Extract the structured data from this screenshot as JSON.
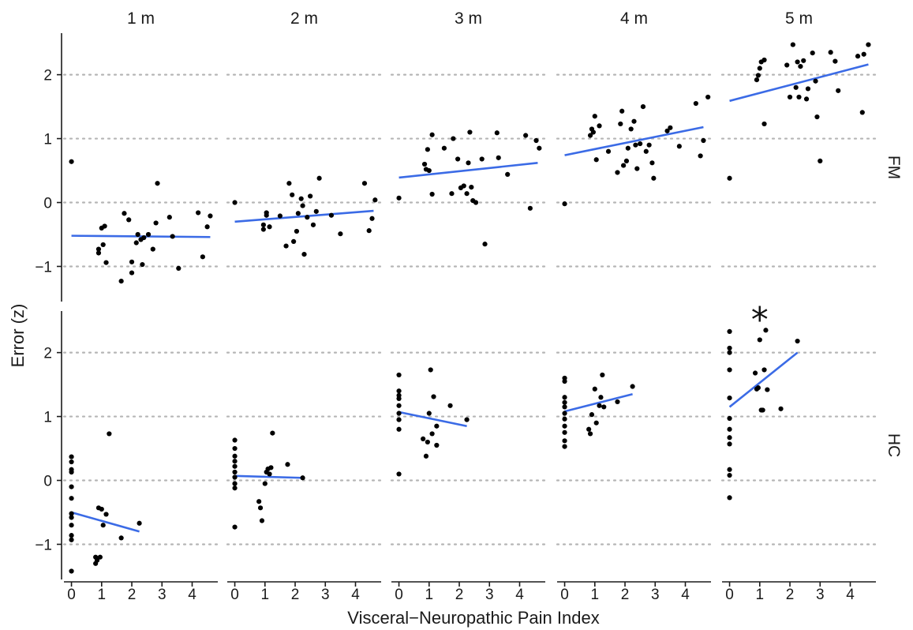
{
  "chart_data": {
    "type": "scatter",
    "xlabel": "Visceral−Neuropathic Pain Index",
    "ylabel": "Error (z)",
    "facet_columns": [
      "1 m",
      "2 m",
      "3 m",
      "4 m",
      "5 m"
    ],
    "facet_rows": [
      "FM",
      "HC"
    ],
    "x_ticks": [
      0,
      1,
      2,
      3,
      4
    ],
    "x_tick_labels": [
      "0",
      "1",
      "2",
      "3",
      "4"
    ],
    "xlim": [
      -0.25,
      4.85
    ],
    "y_ticks": [
      -1,
      0,
      1,
      2
    ],
    "y_tick_labels": [
      "−1",
      "0",
      "1",
      "2"
    ],
    "ylim": [
      -1.55,
      2.65
    ],
    "grid": "horizontal dotted at y ticks",
    "point_color": "#000000",
    "line_color": "#3b6be6",
    "panels": [
      {
        "row": "FM",
        "col": "1 m",
        "points": [
          [
            0,
            0.64
          ],
          [
            0.9,
            -0.73
          ],
          [
            0.9,
            -0.79
          ],
          [
            1.0,
            -0.4
          ],
          [
            1.05,
            -0.66
          ],
          [
            1.1,
            -0.37
          ],
          [
            1.15,
            -0.94
          ],
          [
            1.65,
            -1.23
          ],
          [
            1.75,
            -0.17
          ],
          [
            1.9,
            -0.27
          ],
          [
            2.0,
            -1.1
          ],
          [
            2.0,
            -0.93
          ],
          [
            2.15,
            -0.63
          ],
          [
            2.2,
            -0.5
          ],
          [
            2.3,
            -0.58
          ],
          [
            2.35,
            -0.97
          ],
          [
            2.4,
            -0.55
          ],
          [
            2.55,
            -0.5
          ],
          [
            2.7,
            -0.73
          ],
          [
            2.8,
            -0.32
          ],
          [
            2.85,
            0.3
          ],
          [
            3.25,
            -0.23
          ],
          [
            3.35,
            -0.53
          ],
          [
            3.55,
            -1.03
          ],
          [
            4.2,
            -0.16
          ],
          [
            4.35,
            -0.85
          ],
          [
            4.5,
            -0.38
          ],
          [
            4.6,
            -0.21
          ]
        ],
        "fit": [
          [
            0,
            -0.52
          ],
          [
            4.6,
            -0.54
          ]
        ]
      },
      {
        "row": "FM",
        "col": "2 m",
        "points": [
          [
            0,
            0.0
          ],
          [
            0.95,
            -0.35
          ],
          [
            0.95,
            -0.42
          ],
          [
            1.05,
            -0.2
          ],
          [
            1.05,
            -0.16
          ],
          [
            1.15,
            -0.38
          ],
          [
            1.5,
            -0.21
          ],
          [
            1.7,
            -0.68
          ],
          [
            1.8,
            0.3
          ],
          [
            1.9,
            0.12
          ],
          [
            1.95,
            -0.61
          ],
          [
            2.05,
            -0.45
          ],
          [
            2.1,
            -0.17
          ],
          [
            2.2,
            0.06
          ],
          [
            2.25,
            -0.05
          ],
          [
            2.3,
            -0.81
          ],
          [
            2.4,
            -0.23
          ],
          [
            2.5,
            0.1
          ],
          [
            2.6,
            -0.35
          ],
          [
            2.7,
            -0.14
          ],
          [
            2.8,
            0.38
          ],
          [
            3.2,
            -0.2
          ],
          [
            3.5,
            -0.49
          ],
          [
            4.3,
            0.3
          ],
          [
            4.45,
            -0.44
          ],
          [
            4.55,
            -0.25
          ],
          [
            4.65,
            0.04
          ]
        ],
        "fit": [
          [
            0,
            -0.3
          ],
          [
            4.6,
            -0.13
          ]
        ]
      },
      {
        "row": "FM",
        "col": "3 m",
        "points": [
          [
            0,
            0.07
          ],
          [
            0.85,
            0.6
          ],
          [
            0.9,
            0.52
          ],
          [
            0.95,
            0.83
          ],
          [
            1.0,
            0.5
          ],
          [
            1.1,
            0.13
          ],
          [
            1.1,
            1.06
          ],
          [
            1.5,
            0.85
          ],
          [
            1.75,
            0.14
          ],
          [
            1.8,
            1.0
          ],
          [
            1.95,
            0.68
          ],
          [
            2.05,
            0.23
          ],
          [
            2.15,
            0.26
          ],
          [
            2.25,
            0.14
          ],
          [
            2.3,
            0.62
          ],
          [
            2.35,
            1.1
          ],
          [
            2.4,
            0.24
          ],
          [
            2.45,
            0.03
          ],
          [
            2.55,
            0.0
          ],
          [
            2.75,
            0.68
          ],
          [
            2.85,
            -0.65
          ],
          [
            3.25,
            1.09
          ],
          [
            3.3,
            0.7
          ],
          [
            3.6,
            0.44
          ],
          [
            4.2,
            1.05
          ],
          [
            4.35,
            -0.09
          ],
          [
            4.55,
            0.97
          ],
          [
            4.65,
            0.85
          ]
        ],
        "fit": [
          [
            0,
            0.39
          ],
          [
            4.6,
            0.62
          ]
        ]
      },
      {
        "row": "FM",
        "col": "4 m",
        "points": [
          [
            0,
            -0.02
          ],
          [
            0.85,
            1.05
          ],
          [
            0.9,
            1.15
          ],
          [
            0.95,
            1.1
          ],
          [
            1.0,
            1.35
          ],
          [
            1.05,
            0.67
          ],
          [
            1.15,
            1.2
          ],
          [
            1.45,
            0.8
          ],
          [
            1.75,
            0.47
          ],
          [
            1.85,
            1.23
          ],
          [
            1.9,
            1.43
          ],
          [
            1.95,
            0.58
          ],
          [
            2.05,
            0.65
          ],
          [
            2.1,
            0.85
          ],
          [
            2.2,
            1.15
          ],
          [
            2.3,
            1.27
          ],
          [
            2.35,
            0.9
          ],
          [
            2.4,
            0.53
          ],
          [
            2.5,
            0.92
          ],
          [
            2.6,
            1.5
          ],
          [
            2.7,
            0.8
          ],
          [
            2.8,
            0.9
          ],
          [
            2.9,
            0.62
          ],
          [
            2.95,
            0.38
          ],
          [
            3.4,
            1.12
          ],
          [
            3.5,
            1.17
          ],
          [
            3.8,
            0.88
          ],
          [
            4.35,
            1.55
          ],
          [
            4.5,
            0.73
          ],
          [
            4.6,
            0.97
          ],
          [
            4.75,
            1.65
          ]
        ],
        "fit": [
          [
            0,
            0.74
          ],
          [
            4.6,
            1.18
          ]
        ]
      },
      {
        "row": "FM",
        "col": "5 m",
        "points": [
          [
            0,
            0.38
          ],
          [
            0.9,
            1.92
          ],
          [
            0.95,
            1.99
          ],
          [
            1.0,
            2.1
          ],
          [
            1.05,
            2.2
          ],
          [
            1.15,
            1.23
          ],
          [
            1.15,
            2.23
          ],
          [
            1.9,
            2.15
          ],
          [
            2.0,
            1.65
          ],
          [
            2.1,
            2.47
          ],
          [
            2.2,
            1.8
          ],
          [
            2.25,
            2.2
          ],
          [
            2.3,
            1.65
          ],
          [
            2.35,
            2.13
          ],
          [
            2.45,
            2.22
          ],
          [
            2.55,
            1.62
          ],
          [
            2.6,
            1.78
          ],
          [
            2.75,
            2.34
          ],
          [
            2.85,
            1.9
          ],
          [
            2.9,
            1.34
          ],
          [
            3.0,
            0.65
          ],
          [
            3.35,
            2.35
          ],
          [
            3.5,
            2.21
          ],
          [
            3.6,
            1.75
          ],
          [
            4.25,
            2.29
          ],
          [
            4.4,
            1.41
          ],
          [
            4.45,
            2.32
          ],
          [
            4.6,
            2.47
          ]
        ],
        "fit": [
          [
            0,
            1.59
          ],
          [
            4.6,
            2.16
          ]
        ]
      },
      {
        "row": "HC",
        "col": "1 m",
        "points": [
          [
            0,
            0.37
          ],
          [
            0,
            0.29
          ],
          [
            0,
            0.17
          ],
          [
            0,
            0.13
          ],
          [
            0,
            -0.1
          ],
          [
            0,
            -0.28
          ],
          [
            0,
            -0.52
          ],
          [
            0,
            -0.58
          ],
          [
            0,
            -0.7
          ],
          [
            0,
            -0.86
          ],
          [
            0,
            -0.93
          ],
          [
            0,
            -1.42
          ],
          [
            0.8,
            -1.2
          ],
          [
            0.8,
            -1.3
          ],
          [
            0.85,
            -1.25
          ],
          [
            0.9,
            -0.43
          ],
          [
            0.95,
            -1.2
          ],
          [
            1.0,
            -0.45
          ],
          [
            1.05,
            -0.7
          ],
          [
            1.15,
            -0.53
          ],
          [
            1.25,
            0.73
          ],
          [
            1.65,
            -0.9
          ],
          [
            2.25,
            -0.67
          ]
        ],
        "fit": [
          [
            0,
            -0.5
          ],
          [
            2.25,
            -0.8
          ]
        ]
      },
      {
        "row": "HC",
        "col": "2 m",
        "points": [
          [
            0,
            0.63
          ],
          [
            0,
            0.5
          ],
          [
            0,
            0.38
          ],
          [
            0,
            0.3
          ],
          [
            0,
            0.22
          ],
          [
            0,
            0.13
          ],
          [
            0,
            0.05
          ],
          [
            0,
            -0.05
          ],
          [
            0,
            -0.12
          ],
          [
            0,
            -0.73
          ],
          [
            0.8,
            -0.33
          ],
          [
            0.85,
            -0.43
          ],
          [
            0.9,
            -0.63
          ],
          [
            1.0,
            -0.05
          ],
          [
            1.05,
            0.13
          ],
          [
            1.1,
            0.18
          ],
          [
            1.15,
            0.1
          ],
          [
            1.2,
            0.2
          ],
          [
            1.25,
            0.74
          ],
          [
            1.75,
            0.25
          ],
          [
            2.25,
            0.04
          ]
        ],
        "fit": [
          [
            0,
            0.07
          ],
          [
            2.25,
            0.04
          ]
        ]
      },
      {
        "row": "HC",
        "col": "3 m",
        "points": [
          [
            0,
            1.65
          ],
          [
            0,
            1.4
          ],
          [
            0,
            1.33
          ],
          [
            0,
            1.28
          ],
          [
            0,
            1.17
          ],
          [
            0,
            1.05
          ],
          [
            0,
            0.95
          ],
          [
            0,
            0.8
          ],
          [
            0,
            0.1
          ],
          [
            0.8,
            0.65
          ],
          [
            0.9,
            0.38
          ],
          [
            0.95,
            0.6
          ],
          [
            1.0,
            1.05
          ],
          [
            1.05,
            1.73
          ],
          [
            1.1,
            0.73
          ],
          [
            1.15,
            1.31
          ],
          [
            1.25,
            0.55
          ],
          [
            1.25,
            0.85
          ],
          [
            1.7,
            1.17
          ],
          [
            2.25,
            0.95
          ]
        ],
        "fit": [
          [
            0,
            1.07
          ],
          [
            2.25,
            0.85
          ]
        ]
      },
      {
        "row": "HC",
        "col": "4 m",
        "points": [
          [
            0,
            1.6
          ],
          [
            0,
            1.55
          ],
          [
            0,
            1.3
          ],
          [
            0,
            1.22
          ],
          [
            0,
            1.15
          ],
          [
            0,
            1.05
          ],
          [
            0,
            0.96
          ],
          [
            0,
            0.85
          ],
          [
            0,
            0.75
          ],
          [
            0,
            0.62
          ],
          [
            0,
            0.53
          ],
          [
            0.8,
            0.8
          ],
          [
            0.85,
            0.73
          ],
          [
            0.9,
            1.03
          ],
          [
            1.0,
            1.43
          ],
          [
            1.05,
            0.9
          ],
          [
            1.15,
            1.17
          ],
          [
            1.2,
            1.3
          ],
          [
            1.25,
            1.65
          ],
          [
            1.3,
            1.15
          ],
          [
            1.75,
            1.23
          ],
          [
            2.25,
            1.47
          ]
        ],
        "fit": [
          [
            0,
            1.08
          ],
          [
            2.25,
            1.35
          ]
        ]
      },
      {
        "row": "HC",
        "col": "5 m",
        "points": [
          [
            0,
            2.33
          ],
          [
            0,
            2.07
          ],
          [
            0,
            2.0
          ],
          [
            0,
            1.73
          ],
          [
            0,
            1.29
          ],
          [
            0,
            0.97
          ],
          [
            0,
            0.8
          ],
          [
            0,
            0.67
          ],
          [
            0,
            0.57
          ],
          [
            0,
            0.17
          ],
          [
            0,
            0.08
          ],
          [
            0,
            -0.27
          ],
          [
            0.85,
            1.68
          ],
          [
            0.9,
            1.43
          ],
          [
            0.95,
            1.45
          ],
          [
            1.0,
            2.2
          ],
          [
            1.05,
            1.1
          ],
          [
            1.1,
            1.1
          ],
          [
            1.15,
            1.73
          ],
          [
            1.2,
            2.35
          ],
          [
            1.25,
            1.42
          ],
          [
            1.7,
            1.12
          ],
          [
            2.25,
            2.18
          ]
        ],
        "fit": [
          [
            0,
            1.15
          ],
          [
            2.25,
            2.0
          ]
        ]
      }
    ],
    "annotations": [
      {
        "text": "*",
        "row": "HC",
        "col": "5 m",
        "x": 1.0,
        "y": 2.7
      }
    ]
  }
}
